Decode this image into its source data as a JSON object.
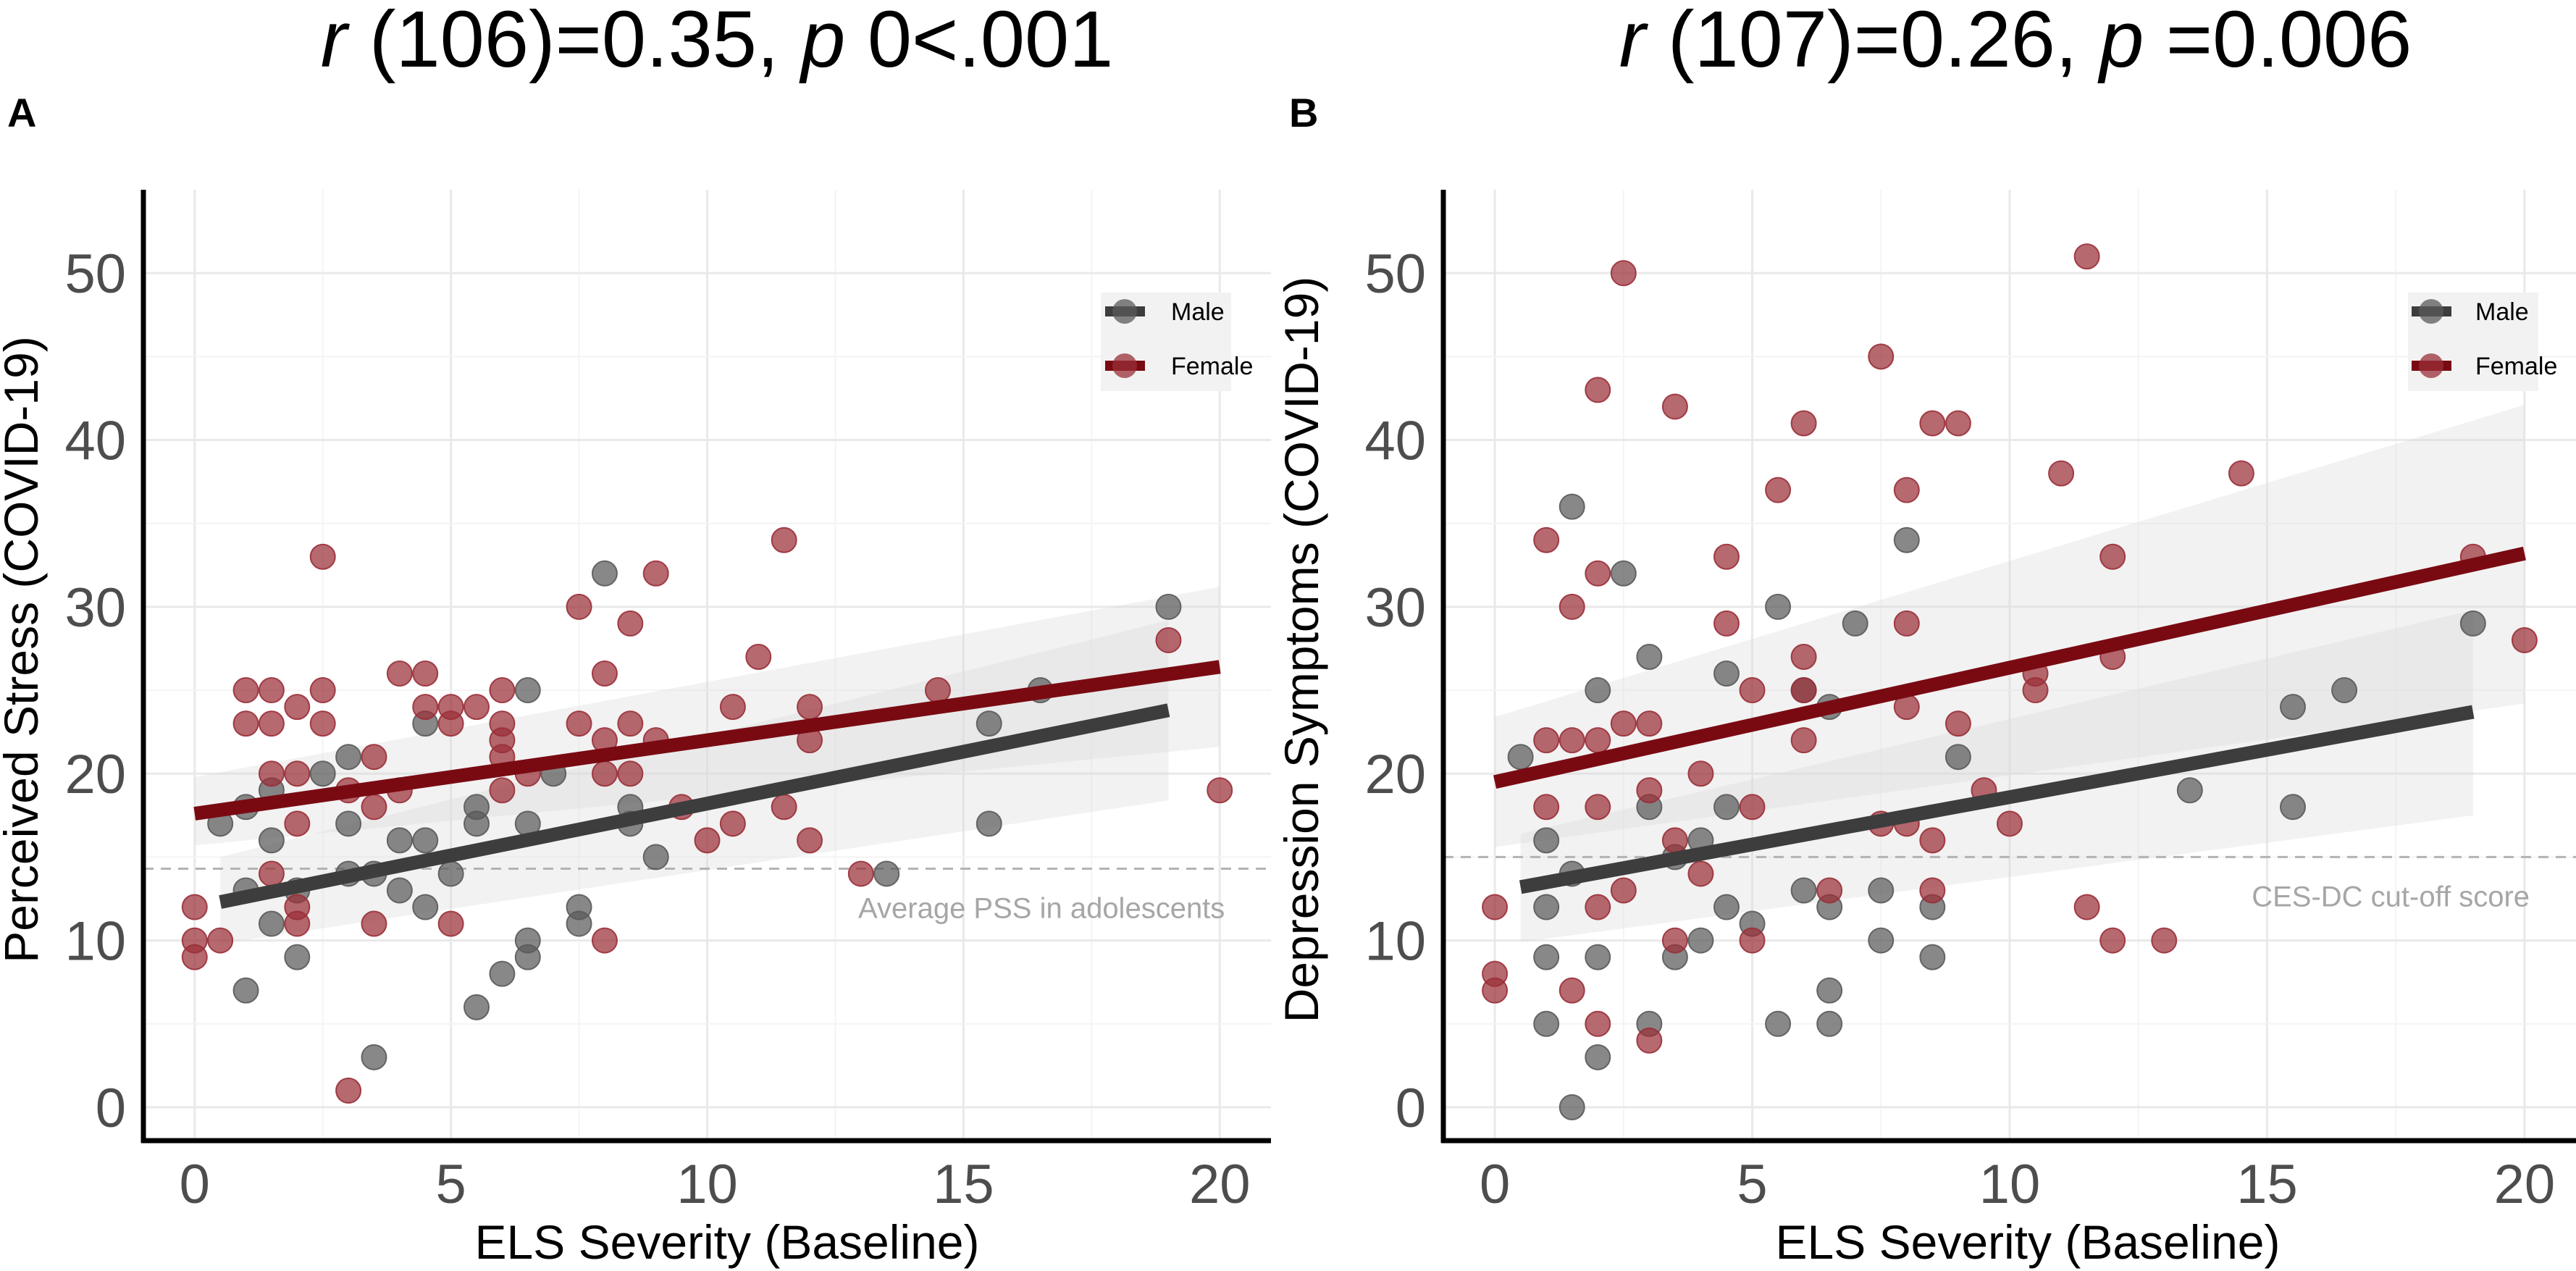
{
  "figure": {
    "colors": {
      "male": "#3d3d3d",
      "female": "#7a0a12",
      "male_point": "#5a5a5a",
      "female_point": "#9a2f38",
      "reference_line": "#b3b3b3",
      "ribbon": "#d9d9d9"
    },
    "icons": {
      "legend_key": "circle-with-line"
    }
  },
  "chart_data": [
    {
      "type": "scatter",
      "panel": "A",
      "title_parts": {
        "r": "r",
        "df": " (106)=0.35, ",
        "p": "p",
        "pval": " 0<.001"
      },
      "xlabel": "ELS Severity (Baseline)",
      "ylabel": "Perceived Stress (COVID-19)",
      "xlim": [
        -1,
        21
      ],
      "ylim": [
        -2,
        55
      ],
      "xticks": [
        0,
        5,
        10,
        15,
        20
      ],
      "yticks": [
        0,
        10,
        20,
        30,
        40,
        50
      ],
      "legend": {
        "position": "top-right",
        "entries": [
          "Male",
          "Female"
        ]
      },
      "reference_line": {
        "y": 14.3,
        "label": "Average PSS in adolescents"
      },
      "series": [
        {
          "name": "Male",
          "points": [
            [
              0.5,
              17
            ],
            [
              1,
              7
            ],
            [
              1,
              13
            ],
            [
              1,
              18
            ],
            [
              1.5,
              16
            ],
            [
              1.5,
              19
            ],
            [
              1.5,
              11
            ],
            [
              2,
              9
            ],
            [
              2,
              13
            ],
            [
              2.5,
              20
            ],
            [
              3,
              21
            ],
            [
              3,
              17
            ],
            [
              3,
              14
            ],
            [
              3.5,
              14
            ],
            [
              3.5,
              3
            ],
            [
              4,
              16
            ],
            [
              4,
              13
            ],
            [
              4.5,
              23
            ],
            [
              4.5,
              16
            ],
            [
              4.5,
              12
            ],
            [
              5,
              14
            ],
            [
              5.5,
              18
            ],
            [
              5.5,
              17
            ],
            [
              5.5,
              6
            ],
            [
              6,
              8
            ],
            [
              6.5,
              25
            ],
            [
              6.5,
              17
            ],
            [
              6.5,
              10
            ],
            [
              6.5,
              9
            ],
            [
              7,
              20
            ],
            [
              7.5,
              12
            ],
            [
              7.5,
              11
            ],
            [
              8,
              32
            ],
            [
              8.5,
              18
            ],
            [
              8.5,
              17
            ],
            [
              9,
              15
            ],
            [
              13.5,
              14
            ],
            [
              15.5,
              23
            ],
            [
              15.5,
              17
            ],
            [
              16.5,
              25
            ],
            [
              19,
              30
            ]
          ],
          "fit": {
            "x": [
              0.5,
              19
            ],
            "y": [
              12.3,
              23.8
            ]
          },
          "ribbon": {
            "x": [
              0.5,
              19
            ],
            "lower": [
              9.8,
              18.4
            ],
            "upper": [
              15.0,
              29.2
            ]
          }
        },
        {
          "name": "Female",
          "points": [
            [
              0,
              12
            ],
            [
              0,
              10
            ],
            [
              0,
              9
            ],
            [
              0.5,
              10
            ],
            [
              1,
              25
            ],
            [
              1,
              23
            ],
            [
              1.5,
              25
            ],
            [
              1.5,
              23
            ],
            [
              1.5,
              20
            ],
            [
              1.5,
              14
            ],
            [
              2,
              24
            ],
            [
              2,
              20
            ],
            [
              2,
              17
            ],
            [
              2,
              12
            ],
            [
              2,
              11
            ],
            [
              2.5,
              33
            ],
            [
              2.5,
              25
            ],
            [
              2.5,
              23
            ],
            [
              3,
              1
            ],
            [
              3,
              19
            ],
            [
              3.5,
              21
            ],
            [
              3.5,
              18
            ],
            [
              3.5,
              11
            ],
            [
              4,
              26
            ],
            [
              4,
              19
            ],
            [
              4.5,
              26
            ],
            [
              4.5,
              24
            ],
            [
              5,
              24
            ],
            [
              5,
              23
            ],
            [
              5,
              11
            ],
            [
              5.5,
              24
            ],
            [
              6,
              25
            ],
            [
              6,
              23
            ],
            [
              6,
              22
            ],
            [
              6,
              21
            ],
            [
              6,
              19
            ],
            [
              6.5,
              20
            ],
            [
              7.5,
              30
            ],
            [
              7.5,
              23
            ],
            [
              8,
              26
            ],
            [
              8,
              22
            ],
            [
              8,
              20
            ],
            [
              8,
              10
            ],
            [
              8.5,
              29
            ],
            [
              8.5,
              23
            ],
            [
              8.5,
              20
            ],
            [
              9,
              32
            ],
            [
              9,
              22
            ],
            [
              9.5,
              18
            ],
            [
              10,
              16
            ],
            [
              10.5,
              24
            ],
            [
              10.5,
              17
            ],
            [
              11,
              27
            ],
            [
              11.5,
              34
            ],
            [
              11.5,
              18
            ],
            [
              12,
              24
            ],
            [
              12,
              22
            ],
            [
              12,
              16
            ],
            [
              13,
              14
            ],
            [
              14.5,
              25
            ],
            [
              19,
              28
            ],
            [
              20,
              19
            ]
          ],
          "fit": {
            "x": [
              0,
              20
            ],
            "y": [
              17.6,
              26.4
            ]
          },
          "ribbon": {
            "x": [
              0,
              20
            ],
            "lower": [
              15.7,
              21.6
            ],
            "upper": [
              19.8,
              31.2
            ]
          }
        }
      ]
    },
    {
      "type": "scatter",
      "panel": "B",
      "title_parts": {
        "r": "r",
        "df": " (107)=0.26, ",
        "p": "p",
        "pval": " =0.006"
      },
      "xlabel": "ELS Severity (Baseline)",
      "ylabel": "Depression Symptoms (COVID-19)",
      "xlim": [
        -1,
        21
      ],
      "ylim": [
        -2,
        55
      ],
      "xticks": [
        0,
        5,
        10,
        15,
        20
      ],
      "yticks": [
        0,
        10,
        20,
        30,
        40,
        50
      ],
      "legend": {
        "position": "top-right",
        "entries": [
          "Male",
          "Female"
        ]
      },
      "reference_line": {
        "y": 15,
        "label": "CES-DC cut-off score"
      },
      "series": [
        {
          "name": "Male",
          "points": [
            [
              0.5,
              21
            ],
            [
              1,
              16
            ],
            [
              1,
              12
            ],
            [
              1,
              9
            ],
            [
              1,
              5
            ],
            [
              1.5,
              36
            ],
            [
              1.5,
              14
            ],
            [
              1.5,
              0
            ],
            [
              2,
              25
            ],
            [
              2,
              9
            ],
            [
              2,
              3
            ],
            [
              2.5,
              32
            ],
            [
              3,
              27
            ],
            [
              3,
              18
            ],
            [
              3,
              5
            ],
            [
              3.5,
              15
            ],
            [
              3.5,
              9
            ],
            [
              4,
              16
            ],
            [
              4,
              10
            ],
            [
              4.5,
              26
            ],
            [
              4.5,
              18
            ],
            [
              4.5,
              12
            ],
            [
              5,
              11
            ],
            [
              5.5,
              30
            ],
            [
              5.5,
              5
            ],
            [
              6,
              25
            ],
            [
              6,
              13
            ],
            [
              6.5,
              24
            ],
            [
              6.5,
              12
            ],
            [
              6.5,
              7
            ],
            [
              6.5,
              5
            ],
            [
              7,
              29
            ],
            [
              7.5,
              13
            ],
            [
              7.5,
              10
            ],
            [
              8,
              34
            ],
            [
              8.5,
              12
            ],
            [
              8.5,
              9
            ],
            [
              9,
              21
            ],
            [
              13.5,
              19
            ],
            [
              15.5,
              24
            ],
            [
              15.5,
              18
            ],
            [
              16.5,
              25
            ],
            [
              19,
              29
            ]
          ],
          "fit": {
            "x": [
              0.5,
              19
            ],
            "y": [
              13.2,
              23.7
            ]
          },
          "ribbon": {
            "x": [
              0.5,
              19
            ],
            "lower": [
              9.9,
              17.5
            ],
            "upper": [
              16.4,
              29.8
            ]
          }
        },
        {
          "name": "Female",
          "points": [
            [
              0,
              12
            ],
            [
              0,
              8
            ],
            [
              0,
              7
            ],
            [
              1,
              34
            ],
            [
              1,
              22
            ],
            [
              1,
              18
            ],
            [
              1.5,
              30
            ],
            [
              1.5,
              22
            ],
            [
              1.5,
              7
            ],
            [
              2,
              43
            ],
            [
              2,
              32
            ],
            [
              2,
              22
            ],
            [
              2,
              18
            ],
            [
              2,
              12
            ],
            [
              2,
              5
            ],
            [
              2.5,
              50
            ],
            [
              2.5,
              23
            ],
            [
              2.5,
              13
            ],
            [
              3,
              23
            ],
            [
              3,
              19
            ],
            [
              3,
              4
            ],
            [
              3.5,
              42
            ],
            [
              3.5,
              16
            ],
            [
              3.5,
              10
            ],
            [
              4,
              20
            ],
            [
              4,
              14
            ],
            [
              4.5,
              33
            ],
            [
              4.5,
              29
            ],
            [
              5,
              25
            ],
            [
              5,
              18
            ],
            [
              5,
              10
            ],
            [
              5.5,
              37
            ],
            [
              6,
              41
            ],
            [
              6,
              27
            ],
            [
              6,
              25
            ],
            [
              6,
              22
            ],
            [
              6.5,
              13
            ],
            [
              7.5,
              45
            ],
            [
              7.5,
              17
            ],
            [
              8,
              37
            ],
            [
              8,
              29
            ],
            [
              8,
              24
            ],
            [
              8,
              17
            ],
            [
              8.5,
              41
            ],
            [
              8.5,
              16
            ],
            [
              8.5,
              13
            ],
            [
              9,
              41
            ],
            [
              9,
              23
            ],
            [
              9.5,
              19
            ],
            [
              10,
              17
            ],
            [
              10.5,
              26
            ],
            [
              10.5,
              25
            ],
            [
              11,
              38
            ],
            [
              11.5,
              51
            ],
            [
              11.5,
              12
            ],
            [
              12,
              33
            ],
            [
              12,
              27
            ],
            [
              12,
              10
            ],
            [
              13,
              10
            ],
            [
              14.5,
              38
            ],
            [
              19,
              33
            ],
            [
              20,
              28
            ]
          ],
          "fit": {
            "x": [
              0,
              20
            ],
            "y": [
              19.5,
              33.2
            ]
          },
          "ribbon": {
            "x": [
              0,
              20
            ],
            "lower": [
              15.6,
              24.2
            ],
            "upper": [
              23.4,
              42.1
            ]
          }
        }
      ]
    }
  ]
}
